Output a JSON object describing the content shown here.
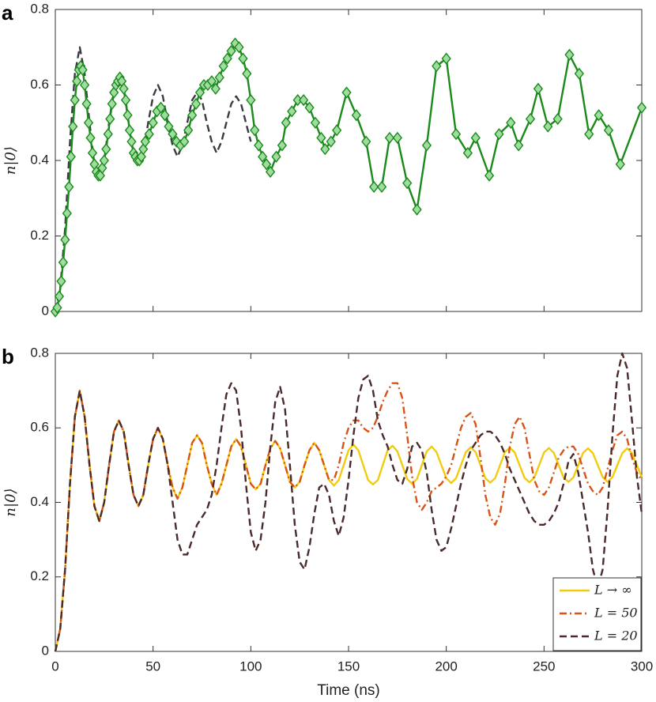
{
  "chart_data": [
    {
      "type": "line",
      "label": "a",
      "ylabel": "n|0⟩",
      "xlim": [
        0,
        300
      ],
      "ylim": [
        0,
        0.8
      ],
      "xticks": [
        0,
        50,
        100,
        150,
        200,
        250,
        300
      ],
      "xticklabels": false,
      "yticks": [
        0,
        0.2,
        0.4,
        0.6,
        0.8
      ],
      "grid": false,
      "series": [
        {
          "color": "#3a3a44",
          "linestyle": "dashed",
          "x": [
            0,
            2.5,
            5,
            7.5,
            10,
            12.5,
            15,
            17.5,
            20,
            22.5,
            25,
            27.5,
            30,
            32.5,
            35,
            37.5,
            40,
            42.5,
            45,
            47.5,
            50,
            52.5,
            55,
            57.5,
            60,
            62.5,
            65,
            67.5,
            70,
            72.5,
            75,
            77.5,
            80,
            82.5,
            85,
            87.5,
            90,
            92.5,
            95,
            97.5,
            100
          ],
          "values": [
            0,
            0.06,
            0.22,
            0.45,
            0.63,
            0.7,
            0.63,
            0.5,
            0.39,
            0.35,
            0.4,
            0.5,
            0.59,
            0.62,
            0.59,
            0.5,
            0.42,
            0.39,
            0.42,
            0.5,
            0.57,
            0.6,
            0.57,
            0.5,
            0.44,
            0.41,
            0.44,
            0.5,
            0.56,
            0.58,
            0.56,
            0.5,
            0.45,
            0.42,
            0.45,
            0.5,
            0.55,
            0.57,
            0.55,
            0.5,
            0.45
          ]
        },
        {
          "color": "#1a8a1a",
          "marker": "diamond",
          "marker_fill": "#9fdc9f",
          "linestyle": "solid",
          "x": [
            0,
            1,
            2,
            3,
            4,
            5,
            6,
            7,
            8,
            9,
            10,
            11,
            12,
            13,
            14,
            15,
            16,
            17,
            18,
            19,
            20,
            21,
            22,
            23,
            24,
            25,
            26,
            27,
            28,
            29,
            30,
            31,
            32,
            33,
            34,
            35,
            36,
            37,
            38,
            39,
            40,
            41,
            42,
            43,
            44,
            45,
            46,
            48,
            50,
            52,
            54,
            56,
            58,
            60,
            62,
            64,
            66,
            68,
            70,
            72,
            74,
            76,
            78,
            80,
            82,
            84,
            86,
            88,
            90,
            92,
            94,
            96,
            98,
            100,
            102,
            104,
            106,
            108,
            110,
            113,
            116,
            118,
            121,
            124,
            127,
            130,
            133,
            136,
            138,
            141,
            144,
            149,
            154,
            159,
            163,
            167,
            171,
            175,
            180,
            185,
            190,
            195,
            200,
            205,
            211,
            215,
            222,
            227,
            233,
            237,
            243,
            247,
            252,
            257,
            263,
            268,
            273,
            278,
            283,
            289,
            300
          ],
          "values": [
            0,
            0.01,
            0.04,
            0.08,
            0.13,
            0.19,
            0.26,
            0.33,
            0.41,
            0.49,
            0.56,
            0.61,
            0.64,
            0.65,
            0.64,
            0.6,
            0.55,
            0.5,
            0.46,
            0.42,
            0.39,
            0.37,
            0.36,
            0.36,
            0.38,
            0.4,
            0.43,
            0.47,
            0.51,
            0.55,
            0.58,
            0.6,
            0.61,
            0.62,
            0.61,
            0.59,
            0.56,
            0.52,
            0.48,
            0.45,
            0.42,
            0.41,
            0.4,
            0.4,
            0.41,
            0.43,
            0.45,
            0.47,
            0.5,
            0.53,
            0.54,
            0.52,
            0.49,
            0.47,
            0.45,
            0.44,
            0.45,
            0.48,
            0.52,
            0.55,
            0.58,
            0.6,
            0.6,
            0.61,
            0.59,
            0.62,
            0.65,
            0.67,
            0.69,
            0.71,
            0.7,
            0.67,
            0.63,
            0.56,
            0.48,
            0.44,
            0.41,
            0.39,
            0.37,
            0.41,
            0.44,
            0.5,
            0.53,
            0.56,
            0.56,
            0.54,
            0.5,
            0.46,
            0.43,
            0.45,
            0.48,
            0.58,
            0.52,
            0.45,
            0.33,
            0.33,
            0.46,
            0.46,
            0.34,
            0.27,
            0.44,
            0.65,
            0.67,
            0.47,
            0.42,
            0.46,
            0.36,
            0.47,
            0.5,
            0.44,
            0.51,
            0.59,
            0.49,
            0.51,
            0.68,
            0.63,
            0.47,
            0.52,
            0.48,
            0.39,
            0.54
          ]
        }
      ]
    },
    {
      "type": "line",
      "label": "b",
      "ylabel": "n|0⟩",
      "xlabel": "Time (ns)",
      "xlim": [
        0,
        300
      ],
      "ylim": [
        0,
        0.8
      ],
      "xticks": [
        0,
        50,
        100,
        150,
        200,
        250,
        300
      ],
      "yticks": [
        0,
        0.2,
        0.4,
        0.6,
        0.8
      ],
      "grid": false,
      "legend": "lower right",
      "x": [
        0,
        2.5,
        5,
        7.5,
        10,
        12.5,
        15,
        17.5,
        20,
        22.5,
        25,
        27.5,
        30,
        32.5,
        35,
        37.5,
        40,
        42.5,
        45,
        47.5,
        50,
        52.5,
        55,
        57.5,
        60,
        62.5,
        65,
        67.5,
        70,
        72.5,
        75,
        77.5,
        80,
        82.5,
        85,
        87.5,
        90,
        92.5,
        95,
        97.5,
        100,
        102.5,
        105,
        107.5,
        110,
        112.5,
        115,
        117.5,
        120,
        122.5,
        125,
        127.5,
        130,
        132.5,
        135,
        137.5,
        140,
        142.5,
        145,
        147.5,
        150,
        152.5,
        155,
        157.5,
        160,
        162.5,
        165,
        167.5,
        170,
        172.5,
        175,
        177.5,
        180,
        182.5,
        185,
        187.5,
        190,
        192.5,
        195,
        197.5,
        200,
        202.5,
        205,
        207.5,
        210,
        212.5,
        215,
        217.5,
        220,
        222.5,
        225,
        227.5,
        230,
        232.5,
        235,
        237.5,
        240,
        242.5,
        245,
        247.5,
        250,
        252.5,
        255,
        257.5,
        260,
        262.5,
        265,
        267.5,
        270,
        272.5,
        275,
        277.5,
        280,
        282.5,
        285,
        287.5,
        290,
        292.5,
        295,
        297.5,
        300
      ],
      "series": [
        {
          "name": "L → ∞",
          "color": "#f2cc0c",
          "linestyle": "solid",
          "values": [
            0,
            0.06,
            0.22,
            0.45,
            0.63,
            0.7,
            0.63,
            0.5,
            0.39,
            0.35,
            0.4,
            0.5,
            0.59,
            0.62,
            0.59,
            0.5,
            0.42,
            0.39,
            0.42,
            0.5,
            0.57,
            0.6,
            0.57,
            0.5,
            0.44,
            0.41,
            0.44,
            0.5,
            0.56,
            0.58,
            0.56,
            0.5,
            0.45,
            0.42,
            0.45,
            0.5,
            0.55,
            0.57,
            0.55,
            0.5,
            0.45,
            0.435,
            0.45,
            0.5,
            0.545,
            0.565,
            0.545,
            0.5,
            0.455,
            0.44,
            0.455,
            0.5,
            0.54,
            0.56,
            0.54,
            0.5,
            0.46,
            0.445,
            0.46,
            0.5,
            0.54,
            0.555,
            0.54,
            0.5,
            0.46,
            0.448,
            0.46,
            0.5,
            0.54,
            0.552,
            0.537,
            0.5,
            0.463,
            0.45,
            0.463,
            0.5,
            0.537,
            0.55,
            0.535,
            0.5,
            0.465,
            0.452,
            0.465,
            0.5,
            0.535,
            0.548,
            0.535,
            0.5,
            0.465,
            0.453,
            0.465,
            0.5,
            0.535,
            0.547,
            0.534,
            0.5,
            0.466,
            0.454,
            0.466,
            0.5,
            0.534,
            0.546,
            0.533,
            0.5,
            0.467,
            0.455,
            0.467,
            0.5,
            0.533,
            0.545,
            0.532,
            0.5,
            0.468,
            0.455,
            0.468,
            0.5,
            0.532,
            0.545,
            0.532,
            0.5,
            0.468
          ]
        },
        {
          "name": "L = 50",
          "color": "#d95319",
          "linestyle": "dashdot",
          "values": [
            0,
            0.06,
            0.22,
            0.45,
            0.63,
            0.7,
            0.63,
            0.5,
            0.39,
            0.35,
            0.4,
            0.5,
            0.59,
            0.62,
            0.59,
            0.5,
            0.42,
            0.39,
            0.42,
            0.5,
            0.57,
            0.6,
            0.57,
            0.5,
            0.44,
            0.41,
            0.44,
            0.5,
            0.56,
            0.58,
            0.56,
            0.5,
            0.45,
            0.42,
            0.45,
            0.5,
            0.55,
            0.57,
            0.55,
            0.5,
            0.45,
            0.435,
            0.45,
            0.5,
            0.545,
            0.565,
            0.545,
            0.5,
            0.455,
            0.44,
            0.455,
            0.5,
            0.54,
            0.56,
            0.54,
            0.5,
            0.46,
            0.46,
            0.5,
            0.56,
            0.6,
            0.62,
            0.62,
            0.6,
            0.59,
            0.6,
            0.63,
            0.67,
            0.7,
            0.72,
            0.72,
            0.68,
            0.58,
            0.47,
            0.4,
            0.38,
            0.4,
            0.43,
            0.44,
            0.45,
            0.47,
            0.5,
            0.55,
            0.6,
            0.63,
            0.64,
            0.61,
            0.52,
            0.42,
            0.36,
            0.34,
            0.37,
            0.45,
            0.55,
            0.61,
            0.63,
            0.6,
            0.53,
            0.46,
            0.43,
            0.42,
            0.44,
            0.48,
            0.52,
            0.54,
            0.55,
            0.55,
            0.53,
            0.49,
            0.45,
            0.43,
            0.42,
            0.44,
            0.49,
            0.54,
            0.58,
            0.59,
            0.57,
            0.52,
            0.48,
            0.46
          ]
        },
        {
          "name": "L = 20",
          "color": "#4a2a2a",
          "linestyle": "dashed",
          "values": [
            0,
            0.06,
            0.22,
            0.45,
            0.63,
            0.7,
            0.63,
            0.5,
            0.39,
            0.35,
            0.4,
            0.5,
            0.59,
            0.62,
            0.59,
            0.5,
            0.42,
            0.39,
            0.42,
            0.5,
            0.57,
            0.6,
            0.57,
            0.5,
            0.4,
            0.3,
            0.26,
            0.26,
            0.3,
            0.34,
            0.36,
            0.38,
            0.42,
            0.5,
            0.6,
            0.69,
            0.72,
            0.7,
            0.6,
            0.45,
            0.32,
            0.27,
            0.3,
            0.4,
            0.55,
            0.67,
            0.71,
            0.65,
            0.5,
            0.34,
            0.24,
            0.22,
            0.28,
            0.37,
            0.44,
            0.45,
            0.42,
            0.35,
            0.31,
            0.36,
            0.46,
            0.58,
            0.68,
            0.73,
            0.74,
            0.7,
            0.62,
            0.58,
            0.55,
            0.5,
            0.46,
            0.45,
            0.49,
            0.55,
            0.56,
            0.54,
            0.48,
            0.38,
            0.3,
            0.27,
            0.28,
            0.33,
            0.39,
            0.45,
            0.5,
            0.54,
            0.56,
            0.58,
            0.59,
            0.59,
            0.58,
            0.56,
            0.53,
            0.49,
            0.46,
            0.43,
            0.4,
            0.37,
            0.35,
            0.34,
            0.34,
            0.35,
            0.37,
            0.4,
            0.45,
            0.51,
            0.53,
            0.48,
            0.4,
            0.32,
            0.22,
            0.17,
            0.22,
            0.38,
            0.58,
            0.74,
            0.8,
            0.76,
            0.62,
            0.47,
            0.37
          ]
        }
      ]
    }
  ]
}
